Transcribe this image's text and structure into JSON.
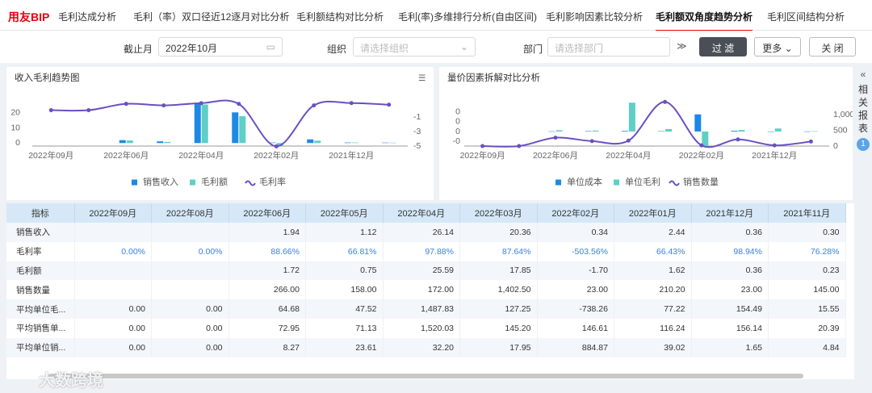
{
  "nav": {
    "logo": "用友BIP",
    "tabs": [
      "毛利达成分析",
      "毛利（率）双口径近12逐月对比分析",
      "毛利额结构对比分析",
      "毛利(率)多维排行分析(自由区间)",
      "毛利影响因素比较分析",
      "毛利额双角度趋势分析",
      "毛利区间结构分析"
    ],
    "active": 5
  },
  "filters": {
    "end_month_label": "截止月",
    "end_month": "2022年10月",
    "org_label": "组织",
    "org_placeholder": "请选择组织",
    "dept_label": "部门",
    "dept_placeholder": "请选择部门",
    "filter_button": "过 滤",
    "more_button": "更多",
    "close_button": "关 闭"
  },
  "side_panel": {
    "label": "相关报表",
    "badge": 1
  },
  "chart_data": [
    {
      "type": "combo",
      "title": "收入毛利趋势图",
      "categories": [
        "2022年09月",
        null,
        "2022年06月",
        null,
        "2022年04月",
        null,
        "2022年02月",
        null,
        "2021年12月",
        null
      ],
      "series": [
        {
          "name": "销售收入",
          "type": "bar",
          "color": "#1e88e5",
          "values": [
            null,
            null,
            1.94,
            1.12,
            26.14,
            20.36,
            0.34,
            2.44,
            0.36,
            0.3
          ]
        },
        {
          "name": "毛利额",
          "type": "bar",
          "color": "#5ecfc6",
          "values": [
            null,
            null,
            1.72,
            0.75,
            25.59,
            17.85,
            -1.7,
            1.62,
            0.36,
            0.23
          ]
        },
        {
          "name": "毛利率",
          "type": "line",
          "axis": "y2",
          "color": "#6a4fc2",
          "values": [
            0,
            0,
            0.8866,
            0.6681,
            0.9788,
            0.8764,
            -5.0356,
            0.6643,
            0.9894,
            0.7628
          ]
        }
      ],
      "ylim": [
        -2,
        28
      ],
      "yticks": [
        0,
        10,
        20
      ],
      "y2lim": [
        -5,
        1.3
      ],
      "y2ticks": [
        -1,
        -3,
        -5
      ],
      "legend": "bottom"
    },
    {
      "type": "combo",
      "title": "量价因素拆解对比分析",
      "categories": [
        "2022年09月",
        null,
        "2022年06月",
        null,
        "2022年04月",
        null,
        "2022年02月",
        null,
        "2021年12月",
        null
      ],
      "series": [
        {
          "name": "单位成本",
          "type": "bar",
          "color": "#1e88e5",
          "values": [
            null,
            null,
            0.000827,
            0.002361,
            0.00322,
            0.001795,
            0.088487,
            0.003902,
            0.000165,
            0.000484
          ]
        },
        {
          "name": "单位毛利",
          "type": "bar",
          "color": "#5ecfc6",
          "values": [
            null,
            null,
            0.006468,
            0.004752,
            0.148783,
            0.012725,
            -0.073826,
            0.007722,
            0.015449,
            0.001555
          ]
        },
        {
          "name": "销售数量",
          "type": "line",
          "axis": "y2",
          "color": "#6a4fc2",
          "values": [
            0,
            0,
            266,
            158,
            172,
            1402.5,
            23,
            210.2,
            23,
            145
          ]
        }
      ],
      "ylim": [
        -0.075,
        0.158
      ],
      "yticks": [
        {
          "value": 0.1,
          "label": "0"
        },
        {
          "value": 0.05,
          "label": "0"
        },
        0,
        {
          "value": -0.05,
          "label": "-0"
        }
      ],
      "y2lim": [
        0,
        1436
      ],
      "y2ticks": [
        0,
        500,
        {
          "value": 1000,
          "label": "1,000"
        }
      ],
      "legend": "bottom"
    }
  ],
  "table": {
    "columns": [
      "指标",
      "2022年09月",
      "2022年08月",
      "2022年06月",
      "2022年05月",
      "2022年04月",
      "2022年03月",
      "2022年02月",
      "2022年01月",
      "2021年12月",
      "2021年11月"
    ],
    "rows": [
      [
        "销售收入",
        null,
        null,
        "1.94",
        "1.12",
        "26.14",
        "20.36",
        "0.34",
        "2.44",
        "0.36",
        "0.30"
      ],
      [
        "毛利率",
        "0.00%",
        "0.00%",
        "88.66%",
        "66.81%",
        "97.88%",
        "87.64%",
        "-503.56%",
        "66.43%",
        "98.94%",
        "76.28%"
      ],
      [
        "毛利额",
        null,
        null,
        "1.72",
        "0.75",
        "25.59",
        "17.85",
        "-1.70",
        "1.62",
        "0.36",
        "0.23"
      ],
      [
        "销售数量",
        null,
        null,
        "266.00",
        "158.00",
        "172.00",
        "1,402.50",
        "23.00",
        "210.20",
        "23.00",
        "145.00"
      ],
      [
        "平均单位毛...",
        "0.00",
        "0.00",
        "64.68",
        "47.52",
        "1,487.83",
        "127.25",
        "-738.26",
        "77.22",
        "154.49",
        "15.55"
      ],
      [
        "平均销售单...",
        "0.00",
        "0.00",
        "72.95",
        "71.13",
        "1,520.03",
        "145.20",
        "146.61",
        "116.24",
        "156.14",
        "20.39"
      ],
      [
        "平均单位销...",
        "0.00",
        "0.00",
        "8.27",
        "23.61",
        "32.20",
        "17.95",
        "884.87",
        "39.02",
        "1.65",
        "4.84"
      ]
    ]
  },
  "watermark": "大数跨境"
}
